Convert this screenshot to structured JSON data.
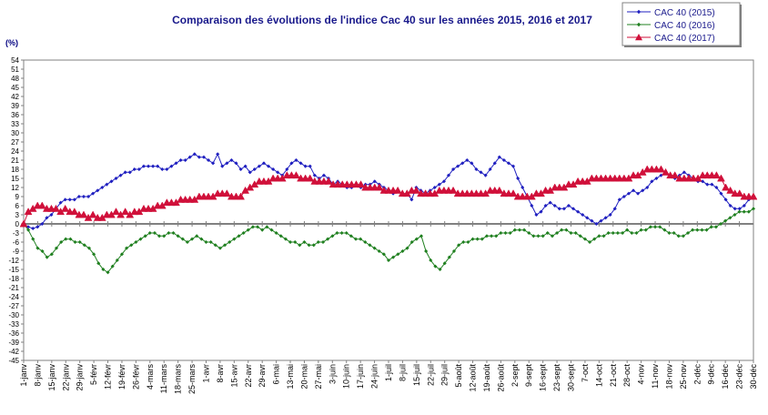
{
  "chart_data": {
    "type": "line",
    "title": "Comparaison des évolutions de l'indice Cac 40 sur les années 2015, 2016 et 2017",
    "ylabel": "(%)",
    "xlabel": "",
    "ylim": [
      -45,
      54
    ],
    "ytick_step": 3,
    "grid": false,
    "legend_position": "top-right",
    "x_tick_labels": [
      "1-janv",
      "8-janv",
      "15-janv",
      "22-janv",
      "29-janv",
      "5-févr",
      "12-févr",
      "19-févr",
      "26-févr",
      "4-mars",
      "11-mars",
      "18-mars",
      "25-mars",
      "1-avr",
      "8-avr",
      "15-avr",
      "22-avr",
      "29-avr",
      "6-mai",
      "13-mai",
      "20-mai",
      "27-mai",
      "3-juin",
      "10-juin",
      "17-juin",
      "24-juin",
      "1-juil",
      "8-juil",
      "15-juil",
      "22-juil",
      "29-juil",
      "5-août",
      "12-août",
      "19-août",
      "26-août",
      "2-sept",
      "9-sept",
      "16-sept",
      "23-sept",
      "30-sept",
      "7-oct",
      "14-oct",
      "21-oct",
      "28-oct",
      "4-nov",
      "11-nov",
      "18-nov",
      "25-nov",
      "2-déc",
      "9-déc",
      "16-déc",
      "23-déc",
      "30-déc"
    ],
    "series": [
      {
        "name": "CAC 40 (2015)",
        "color": "#2020c0",
        "marker": "diamond",
        "values": [
          0,
          -1,
          -1.5,
          -1,
          0,
          2,
          3,
          5,
          7,
          8,
          8,
          8,
          9,
          9,
          9,
          10,
          11,
          12,
          13,
          14,
          15,
          16,
          17,
          17,
          18,
          18,
          19,
          19,
          19,
          19,
          18,
          18,
          19,
          20,
          21,
          21,
          22,
          23,
          22,
          22,
          21,
          20,
          23,
          19,
          20,
          21,
          20,
          18,
          19,
          17,
          18,
          19,
          20,
          19,
          18,
          17,
          16,
          18,
          20,
          21,
          20,
          19,
          19,
          16,
          15,
          16,
          15,
          13,
          14,
          13,
          12,
          12,
          13,
          12,
          13,
          13,
          14,
          13,
          12,
          11,
          10,
          11,
          10,
          10,
          8,
          12,
          11,
          10,
          11,
          12,
          13,
          14,
          16,
          18,
          19,
          20,
          21,
          20,
          18,
          17,
          16,
          18,
          20,
          22,
          21,
          20,
          19,
          15,
          12,
          9,
          6,
          3,
          4,
          6,
          7,
          6,
          5,
          5,
          6,
          5,
          4,
          3,
          2,
          1,
          0,
          1,
          2,
          3,
          5,
          8,
          9,
          10,
          11,
          10,
          11,
          12,
          14,
          15,
          16,
          17,
          16,
          15,
          16,
          17,
          16,
          15,
          14,
          14,
          13,
          13,
          12,
          10,
          8,
          6,
          5,
          5,
          6,
          8,
          9
        ]
      },
      {
        "name": "CAC 40 (2016)",
        "color": "#208020",
        "marker": "diamond",
        "values": [
          0,
          -2,
          -5,
          -8,
          -9,
          -11,
          -10,
          -8,
          -6,
          -5,
          -5,
          -6,
          -6,
          -7,
          -8,
          -10,
          -13,
          -15,
          -16,
          -14,
          -12,
          -10,
          -8,
          -7,
          -6,
          -5,
          -4,
          -3,
          -3,
          -4,
          -4,
          -3,
          -3,
          -4,
          -5,
          -6,
          -5,
          -4,
          -5,
          -6,
          -6,
          -7,
          -8,
          -7,
          -6,
          -5,
          -4,
          -3,
          -2,
          -1,
          -1,
          -2,
          -1,
          -2,
          -3,
          -4,
          -5,
          -6,
          -6,
          -7,
          -6,
          -7,
          -7,
          -6,
          -6,
          -5,
          -4,
          -3,
          -3,
          -3,
          -4,
          -5,
          -5,
          -6,
          -7,
          -8,
          -9,
          -10,
          -12,
          -11,
          -10,
          -9,
          -8,
          -6,
          -5,
          -4,
          -9,
          -12,
          -14,
          -15,
          -13,
          -11,
          -9,
          -7,
          -6,
          -6,
          -5,
          -5,
          -5,
          -4,
          -4,
          -4,
          -3,
          -3,
          -3,
          -2,
          -2,
          -2,
          -3,
          -4,
          -4,
          -4,
          -3,
          -4,
          -3,
          -2,
          -2,
          -3,
          -3,
          -4,
          -5,
          -6,
          -5,
          -4,
          -4,
          -3,
          -3,
          -3,
          -3,
          -2,
          -3,
          -3,
          -2,
          -2,
          -1,
          -1,
          -1,
          -2,
          -3,
          -3,
          -4,
          -4,
          -3,
          -2,
          -2,
          -2,
          -2,
          -1,
          -1,
          0,
          1,
          2,
          3,
          4,
          4,
          4,
          5
        ]
      },
      {
        "name": "CAC 40 (2017)",
        "color": "#d0103a",
        "marker": "triangle",
        "values": [
          0,
          4,
          5,
          6,
          6,
          5,
          5,
          5,
          4,
          5,
          4,
          4,
          3,
          3,
          2,
          3,
          2,
          2,
          3,
          3,
          4,
          3,
          4,
          3,
          4,
          4,
          5,
          5,
          5,
          6,
          6,
          7,
          7,
          7,
          8,
          8,
          8,
          8,
          9,
          9,
          9,
          9,
          10,
          10,
          10,
          9,
          9,
          9,
          11,
          12,
          13,
          14,
          14,
          14,
          15,
          15,
          15,
          16,
          16,
          16,
          15,
          15,
          15,
          14,
          14,
          14,
          14,
          13,
          13,
          13,
          13,
          13,
          13,
          13,
          12,
          12,
          12,
          12,
          11,
          11,
          11,
          11,
          10,
          10,
          11,
          11,
          10,
          10,
          10,
          10,
          11,
          11,
          11,
          11,
          10,
          10,
          10,
          10,
          10,
          10,
          10,
          11,
          11,
          11,
          10,
          10,
          10,
          9,
          9,
          9,
          9,
          10,
          10,
          11,
          11,
          12,
          12,
          12,
          13,
          13,
          14,
          14,
          14,
          15,
          15,
          15,
          15,
          15,
          15,
          15,
          15,
          15,
          16,
          16,
          17,
          18,
          18,
          18,
          18,
          17,
          16,
          16,
          15,
          15,
          15,
          15,
          15,
          16,
          16,
          16,
          16,
          15,
          12,
          11,
          10,
          10,
          9,
          9,
          9
        ]
      }
    ]
  }
}
